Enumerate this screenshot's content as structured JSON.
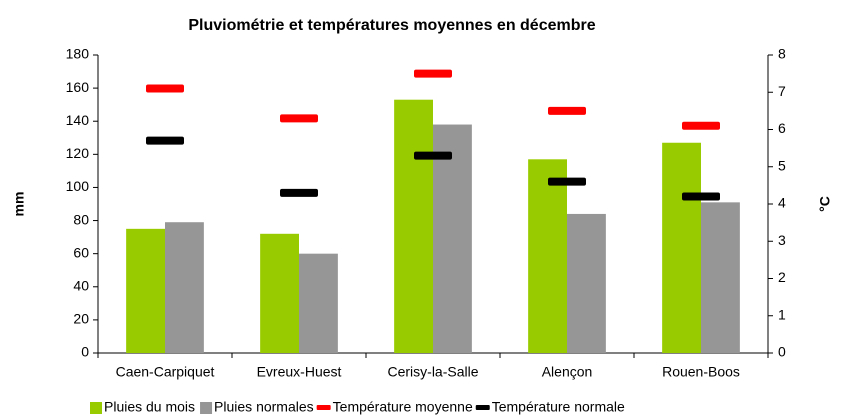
{
  "chart_data": {
    "type": "bar",
    "title": "Pluviométrie et températures moyennes en décembre",
    "categories": [
      "Caen-Carpiquet",
      "Evreux-Huest",
      "Cerisy-la-Salle",
      "Alençon",
      "Rouen-Boos"
    ],
    "series": [
      {
        "name": "Pluies du mois",
        "color": "#99cc00",
        "type": "bar",
        "values": [
          75,
          72,
          153,
          117,
          127
        ]
      },
      {
        "name": "Pluies normales",
        "color": "#969696",
        "type": "bar",
        "values": [
          79,
          60,
          138,
          84,
          91
        ]
      },
      {
        "name": "Température moyenne",
        "color": "#ff0000",
        "type": "marker",
        "axis": "y2",
        "values": [
          7.1,
          6.3,
          7.5,
          6.5,
          6.1
        ]
      },
      {
        "name": "Température normale",
        "color": "#000000",
        "type": "marker",
        "axis": "y2",
        "values": [
          5.7,
          4.3,
          5.3,
          4.6,
          4.2
        ]
      }
    ],
    "ylabel": "mm",
    "y2label": "°C",
    "ylim": [
      0,
      180
    ],
    "yticks": [
      0,
      20,
      40,
      60,
      80,
      100,
      120,
      140,
      160,
      180
    ],
    "y2lim": [
      0,
      8
    ],
    "y2ticks": [
      0,
      1,
      2,
      3,
      4,
      5,
      6,
      7,
      8
    ],
    "legend": "bottom"
  }
}
